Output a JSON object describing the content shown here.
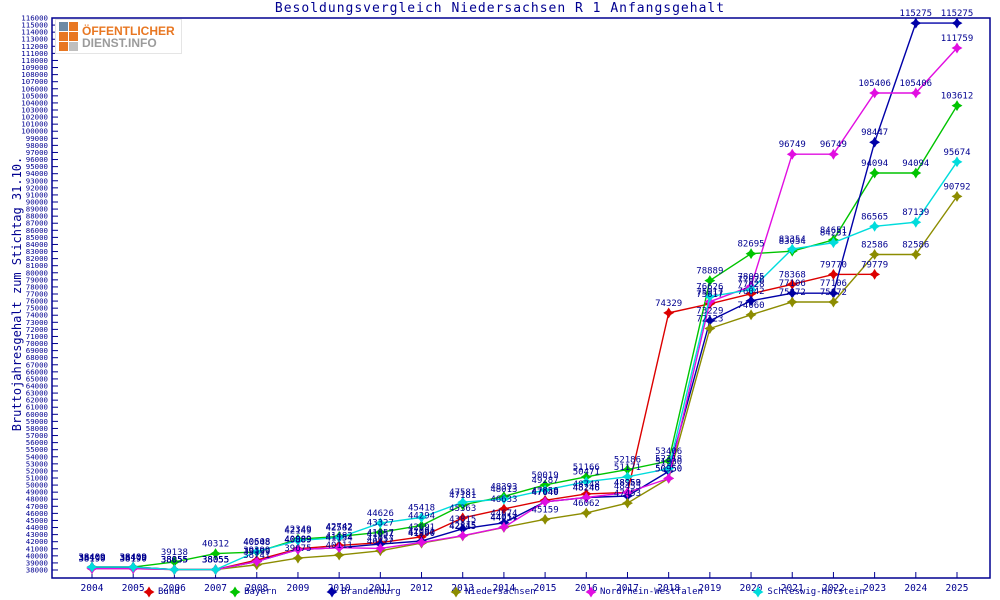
{
  "logo": {
    "line1": "ÖFFENTLICHER",
    "line2": "DIENST.INFO",
    "line1_color": "#e87722",
    "line2_color": "#9b9b9b",
    "squares": [
      "#6d8aa5",
      "#e87722",
      "#e87722",
      "#e87722",
      "#e87722",
      "#bfbfbf"
    ]
  },
  "chart_data": {
    "type": "line",
    "title": "Besoldungsvergleich Niedersachsen R 1 Anfangsgehalt",
    "ylabel": "Bruttojahresgehalt zum Stichtag 31.10.",
    "xlabel": "",
    "x": [
      2004,
      2005,
      2006,
      2007,
      2008,
      2009,
      2010,
      2011,
      2012,
      2013,
      2014,
      2015,
      2016,
      2017,
      2018,
      2019,
      2020,
      2021,
      2022,
      2023,
      2024,
      2025
    ],
    "ylim": [
      38000,
      116000
    ],
    "ytick_step": 1000,
    "grid": false,
    "legend_position": "bottom",
    "point_labels": true,
    "axis_color": "#000090",
    "label_color": "#000090",
    "series": [
      {
        "name": "Bund",
        "color": "#dc0000",
        "values": [
          38409,
          38409,
          38055,
          38055,
          39399,
          40989,
          41482,
          41857,
          42691,
          45363,
          46633,
          47850,
          48748,
          48959,
          74329,
          75617,
          77028,
          78368,
          79770,
          79779,
          null,
          null
        ]
      },
      {
        "name": "Bayern",
        "color": "#00c400",
        "values": [
          38409,
          38409,
          39138,
          40312,
          40548,
          42349,
          42742,
          43327,
          44294,
          47181,
          48393,
          50019,
          51166,
          52186,
          53406,
          78889,
          82695,
          83054,
          84651,
          94094,
          94094,
          103612
        ]
      },
      {
        "name": "Brandenburg",
        "color": "#0000a8",
        "values": [
          38409,
          38409,
          38055,
          38055,
          39199,
          40889,
          41154,
          41657,
          42091,
          43815,
          44674,
          47640,
          48246,
          48455,
          51930,
          73229,
          76042,
          77106,
          77106,
          98447,
          115275,
          115275
        ]
      },
      {
        "name": "Niedersachsen",
        "color": "#8c8c00",
        "values": [
          38190,
          38190,
          38055,
          38055,
          38741,
          39675,
          40111,
          40712,
          41800,
          42815,
          44017,
          45159,
          46062,
          47453,
          50950,
          72123,
          74060,
          75872,
          75872,
          82586,
          82586,
          90792
        ]
      },
      {
        "name": "Nordrhein-Westfalen",
        "color": "#e10ee1",
        "values": [
          38190,
          38190,
          38055,
          38055,
          39199,
          40889,
          41154,
          41057,
          41900,
          42845,
          44054,
          47640,
          48246,
          48953,
          50950,
          75917,
          78095,
          96749,
          96749,
          105406,
          105406,
          111759
        ]
      },
      {
        "name": "Schleswig-Holstein",
        "color": "#00dcdc",
        "values": [
          38409,
          38409,
          38055,
          38055,
          40608,
          42149,
          42582,
          44626,
          45418,
          47581,
          48013,
          49287,
          50471,
          51171,
          52318,
          76626,
          77628,
          83354,
          84251,
          86565,
          87139,
          95674
        ]
      }
    ]
  }
}
